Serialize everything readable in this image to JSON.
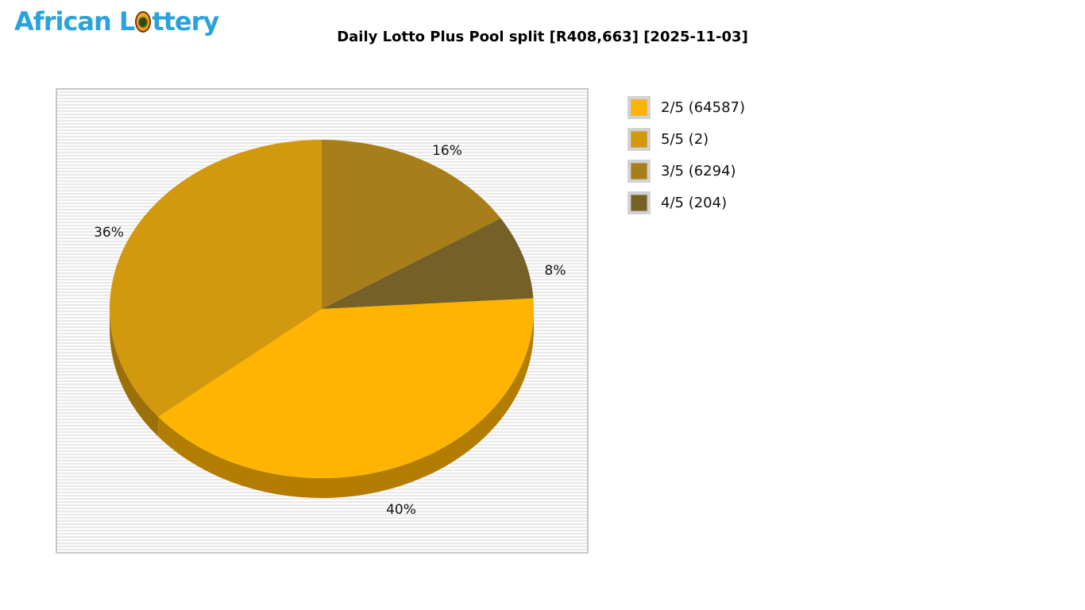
{
  "logo": {
    "text": "African Lottery",
    "part_before_ball": "African L",
    "part_after_ball": "ttery",
    "color": "#2aa3dc"
  },
  "header": {
    "title": "Daily Lotto Plus Pool split [R408,663] [2025-11-03]"
  },
  "chart_data": {
    "type": "pie",
    "title": "Daily Lotto Plus Pool split [R408,663] [2025-11-03]",
    "pool_total": "R408,663",
    "date": "2025-11-03",
    "effect": "3d",
    "start_angle_deg": 0,
    "direction": "clockwise",
    "legend_position": "right",
    "series": [
      {
        "name": "2/5",
        "count": 64587,
        "percent": 40,
        "color": "#feb400",
        "depth_color": "#b27d00"
      },
      {
        "name": "5/5",
        "count": 2,
        "percent": 36,
        "color": "#d2980e",
        "depth_color": "#9c7008"
      },
      {
        "name": "3/5",
        "count": 6294,
        "percent": 16,
        "color": "#a87e1b",
        "depth_color": "#7b5c13"
      },
      {
        "name": "4/5",
        "count": 204,
        "percent": 8,
        "color": "#756027",
        "depth_color": "#524318"
      }
    ],
    "draw_order": [
      "3/5",
      "4/5",
      "2/5",
      "5/5"
    ],
    "slice_labels": [
      "16%",
      "8%",
      "40%",
      "36%"
    ]
  },
  "legend": {
    "items": [
      {
        "label": "2/5 (64587)",
        "color": "#feb400"
      },
      {
        "label": "5/5 (2)",
        "color": "#d2980e"
      },
      {
        "label": "3/5 (6294)",
        "color": "#a87e1b"
      },
      {
        "label": "4/5 (204)",
        "color": "#756027"
      }
    ]
  }
}
